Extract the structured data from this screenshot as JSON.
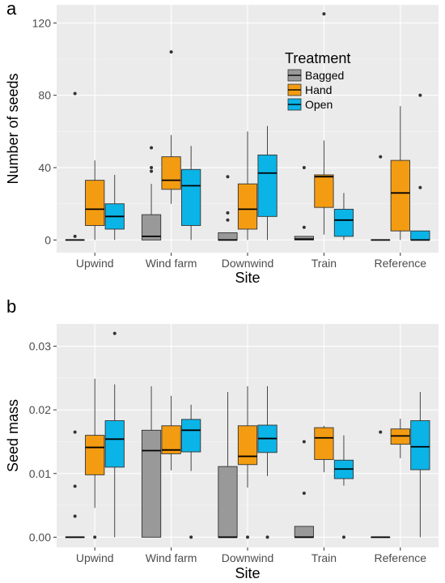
{
  "chart_data": [
    {
      "type": "boxplot",
      "panel_tag": "a",
      "xlabel": "Site",
      "ylabel": "Number of seeds",
      "ylim": [
        -7,
        130
      ],
      "yticks": [
        0,
        40,
        80,
        120
      ],
      "ytick_labels": [
        "0",
        "40",
        "80",
        "120"
      ],
      "categories": [
        "Upwind",
        "Wind farm",
        "Downwind",
        "Train",
        "Reference"
      ],
      "grid": true,
      "legend": {
        "title": "Treatment",
        "placement": "top-right",
        "entries": [
          "Bagged",
          "Hand",
          "Open"
        ]
      },
      "series": [
        {
          "name": "Bagged",
          "color": "#999999",
          "boxes": [
            {
              "q1": 0,
              "median": 0,
              "q3": 0,
              "lower": 0,
              "upper": 0,
              "outliers": [
                81,
                2
              ]
            },
            {
              "q1": 0,
              "median": 2,
              "q3": 14,
              "lower": 0,
              "upper": 31,
              "outliers": [
                51,
                40,
                38
              ]
            },
            {
              "q1": 0,
              "median": 0,
              "q3": 4,
              "lower": 0,
              "upper": 4,
              "outliers": [
                35,
                15,
                11
              ]
            },
            {
              "q1": 0,
              "median": 0.5,
              "q3": 2,
              "lower": 0,
              "upper": 2,
              "outliers": [
                40,
                7
              ]
            },
            {
              "q1": 0,
              "median": 0,
              "q3": 0,
              "lower": 0,
              "upper": 0,
              "outliers": [
                46
              ]
            }
          ]
        },
        {
          "name": "Hand",
          "color": "#F39C12",
          "boxes": [
            {
              "q1": 8,
              "median": 17,
              "q3": 33,
              "lower": 0,
              "upper": 44,
              "outliers": []
            },
            {
              "q1": 28,
              "median": 33,
              "q3": 46,
              "lower": 20,
              "upper": 58,
              "outliers": [
                104
              ]
            },
            {
              "q1": 6,
              "median": 17,
              "q3": 31,
              "lower": 0,
              "upper": 60,
              "outliers": []
            },
            {
              "q1": 18,
              "median": 35,
              "q3": 36,
              "lower": 3,
              "upper": 55,
              "outliers": [
                125
              ]
            },
            {
              "q1": 5,
              "median": 26,
              "q3": 44,
              "lower": 0,
              "upper": 74,
              "outliers": []
            }
          ]
        },
        {
          "name": "Open",
          "color": "#0BB4E7",
          "boxes": [
            {
              "q1": 6,
              "median": 13,
              "q3": 20,
              "lower": 0,
              "upper": 36,
              "outliers": []
            },
            {
              "q1": 8,
              "median": 30,
              "q3": 39,
              "lower": 0,
              "upper": 52,
              "outliers": []
            },
            {
              "q1": 13,
              "median": 37,
              "q3": 47,
              "lower": 0,
              "upper": 63,
              "outliers": []
            },
            {
              "q1": 2,
              "median": 11,
              "q3": 17,
              "lower": 0,
              "upper": 26,
              "outliers": []
            },
            {
              "q1": 0,
              "median": 0,
              "q3": 5,
              "lower": 0,
              "upper": 5,
              "outliers": [
                80,
                29
              ]
            }
          ]
        }
      ]
    },
    {
      "type": "boxplot",
      "panel_tag": "b",
      "xlabel": "Site",
      "ylabel": "Seed mass",
      "ylim": [
        -0.0016,
        0.0335
      ],
      "yticks": [
        0,
        0.01,
        0.02,
        0.03
      ],
      "ytick_labels": [
        "0.00",
        "0.01",
        "0.02",
        "0.03"
      ],
      "categories": [
        "Upwind",
        "Wind farm",
        "Downwind",
        "Train",
        "Reference"
      ],
      "grid": true,
      "series": [
        {
          "name": "Bagged",
          "color": "#999999",
          "boxes": [
            {
              "q1": 0,
              "median": 0,
              "q3": 0,
              "lower": 0,
              "upper": 0,
              "outliers": [
                0.0165,
                0.008,
                0.0033
              ]
            },
            {
              "q1": 0,
              "median": 0.0136,
              "q3": 0.0168,
              "lower": 0,
              "upper": 0.0237,
              "outliers": []
            },
            {
              "q1": 0,
              "median": 0,
              "q3": 0.0111,
              "lower": 0,
              "upper": 0.0228,
              "outliers": []
            },
            {
              "q1": 0,
              "median": 0,
              "q3": 0.0017,
              "lower": 0,
              "upper": 0.0017,
              "outliers": [
                0.015,
                0.0069
              ]
            },
            {
              "q1": 0,
              "median": 0,
              "q3": 0,
              "lower": 0,
              "upper": 0,
              "outliers": [
                0.0165
              ]
            }
          ]
        },
        {
          "name": "Hand",
          "color": "#F39C12",
          "boxes": [
            {
              "q1": 0.0098,
              "median": 0.0141,
              "q3": 0.016,
              "lower": 0.0046,
              "upper": 0.0249,
              "outliers": [
                0
              ]
            },
            {
              "q1": 0.0131,
              "median": 0.0137,
              "q3": 0.0175,
              "lower": 0.0105,
              "upper": 0.0222,
              "outliers": []
            },
            {
              "q1": 0.0114,
              "median": 0.0127,
              "q3": 0.0175,
              "lower": 0.0078,
              "upper": 0.0237,
              "outliers": [
                0
              ]
            },
            {
              "q1": 0.0122,
              "median": 0.0156,
              "q3": 0.0172,
              "lower": 0.0102,
              "upper": 0.0175,
              "outliers": []
            },
            {
              "q1": 0.0146,
              "median": 0.0159,
              "q3": 0.017,
              "lower": 0.0124,
              "upper": 0.0186,
              "outliers": []
            }
          ]
        },
        {
          "name": "Open",
          "color": "#0BB4E7",
          "boxes": [
            {
              "q1": 0.011,
              "median": 0.0154,
              "q3": 0.0183,
              "lower": 0,
              "upper": 0.024,
              "outliers": [
                0.032
              ]
            },
            {
              "q1": 0.0134,
              "median": 0.0168,
              "q3": 0.0185,
              "lower": 0.0104,
              "upper": 0.0208,
              "outliers": [
                0
              ]
            },
            {
              "q1": 0.0133,
              "median": 0.0155,
              "q3": 0.0176,
              "lower": 0.0096,
              "upper": 0.0237,
              "outliers": [
                0
              ]
            },
            {
              "q1": 0.0092,
              "median": 0.0107,
              "q3": 0.0121,
              "lower": 0.0081,
              "upper": 0.016,
              "outliers": [
                0
              ]
            },
            {
              "q1": 0.0106,
              "median": 0.0142,
              "q3": 0.0183,
              "lower": 0,
              "upper": 0.0228,
              "outliers": []
            }
          ]
        }
      ]
    }
  ]
}
